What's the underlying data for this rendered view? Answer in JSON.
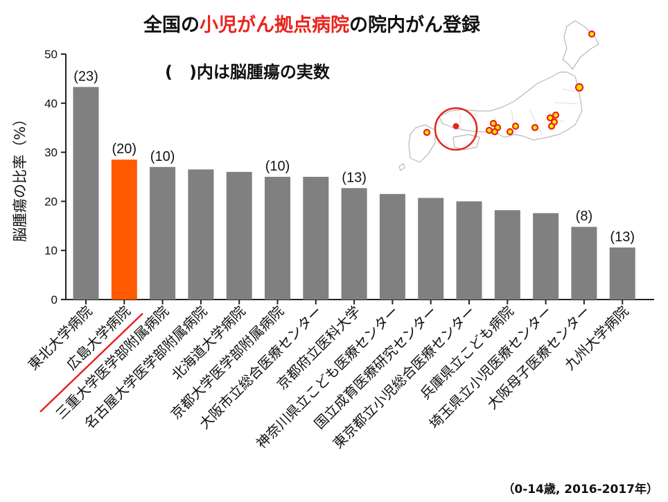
{
  "title": {
    "part1": "全国の",
    "highlight": "小児がん拠点病院",
    "part2": "の院内がん登録"
  },
  "subtitle": "(　)内は脳腫瘍の実数",
  "footnote": "（0-14歳, 2016-2017年）",
  "colors": {
    "bar": "#808080",
    "highlight_bar": "#ff5a00",
    "underline": "#e8231c",
    "map_ring": "#e8231c",
    "marker_fill": "#ffe800",
    "marker_border": "#e8231c"
  },
  "chart_data": {
    "type": "bar",
    "ylabel": "脳腫瘍の比率（%）",
    "ylim": [
      0,
      50
    ],
    "yticks": [
      0,
      10,
      20,
      30,
      40,
      50
    ],
    "grid": false,
    "highlight_index": 1,
    "categories": [
      "東北大学病院",
      "広島大学病院",
      "三重大学医学部附属病院",
      "名古屋大学医学部附属病院",
      "北海道大学病院",
      "京都大学医学部附属病院",
      "大阪市立総合医療センター",
      "京都府立医科大学",
      "神奈川県立こども医療センター",
      "国立成育医療研究センター",
      "東京都立小児総合医療センター",
      "兵庫県立こども病院",
      "埼玉県立小児医療センター",
      "大阪母子医療センター",
      "九州大学病院"
    ],
    "values": [
      43.3,
      28.5,
      27.0,
      26.5,
      26.0,
      25.0,
      25.0,
      22.7,
      21.5,
      20.7,
      20.0,
      18.2,
      17.6,
      14.8,
      10.6
    ],
    "data_labels": [
      "(23)",
      "(20)",
      "(10)",
      "",
      "",
      "(10)",
      "",
      "(13)",
      "",
      "",
      "",
      "",
      "",
      "(8)",
      "(13)"
    ]
  }
}
